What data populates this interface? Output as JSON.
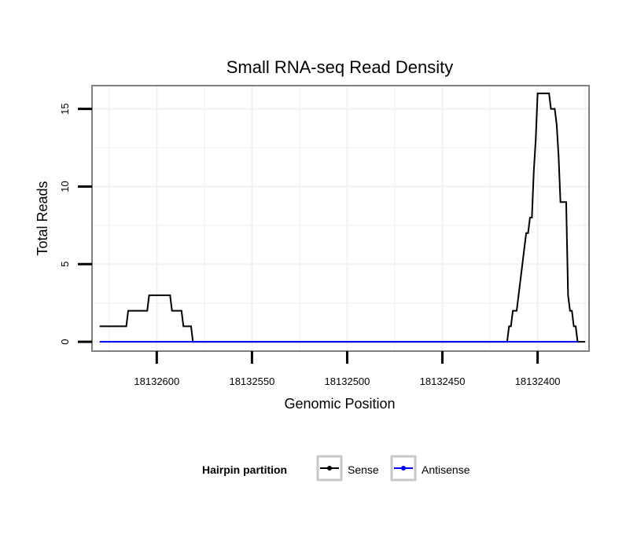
{
  "chart_data": {
    "type": "line",
    "title": "Small RNA-seq Read Density",
    "xlabel": "Genomic Position",
    "ylabel": "Total Reads",
    "x_reversed": true,
    "xlim": [
      18132634,
      18132373
    ],
    "ylim": [
      -0.6,
      16.5
    ],
    "x_ticks": [
      18132600,
      18132550,
      18132500,
      18132450,
      18132400
    ],
    "x_tick_labels": [
      "18132600",
      "18132550",
      "18132500",
      "18132450",
      "18132400"
    ],
    "y_ticks": [
      0,
      5,
      10,
      15
    ],
    "y_tick_labels": [
      "0",
      "5",
      "10",
      "15"
    ],
    "grid": true,
    "legend": {
      "title": "Hairpin partition",
      "position": "bottom",
      "entries": [
        "Sense",
        "Antisense"
      ]
    },
    "series": [
      {
        "name": "Sense",
        "color": "#000000",
        "points": [
          [
            18132630,
            1
          ],
          [
            18132616,
            1
          ],
          [
            18132615,
            2
          ],
          [
            18132605,
            2
          ],
          [
            18132604,
            3
          ],
          [
            18132593,
            3
          ],
          [
            18132592,
            2
          ],
          [
            18132587,
            2
          ],
          [
            18132586,
            1
          ],
          [
            18132582,
            1
          ],
          [
            18132581,
            0
          ],
          [
            18132416,
            0
          ],
          [
            18132415,
            1
          ],
          [
            18132414,
            1
          ],
          [
            18132413,
            2
          ],
          [
            18132411,
            2
          ],
          [
            18132409,
            4
          ],
          [
            18132407,
            6
          ],
          [
            18132406,
            7
          ],
          [
            18132405,
            7
          ],
          [
            18132404,
            8
          ],
          [
            18132403,
            8
          ],
          [
            18132402,
            11
          ],
          [
            18132401,
            13
          ],
          [
            18132400,
            16
          ],
          [
            18132394,
            16
          ],
          [
            18132393,
            15
          ],
          [
            18132391,
            15
          ],
          [
            18132390,
            14
          ],
          [
            18132389,
            12
          ],
          [
            18132388,
            9
          ],
          [
            18132385,
            9
          ],
          [
            18132384,
            3
          ],
          [
            18132383,
            2
          ],
          [
            18132382,
            2
          ],
          [
            18132381,
            1
          ],
          [
            18132380,
            1
          ],
          [
            18132379,
            0
          ],
          [
            18132375,
            0
          ]
        ]
      },
      {
        "name": "Antisense",
        "color": "#0000ff",
        "points": [
          [
            18132630,
            0
          ],
          [
            18132379,
            0
          ]
        ]
      }
    ]
  }
}
